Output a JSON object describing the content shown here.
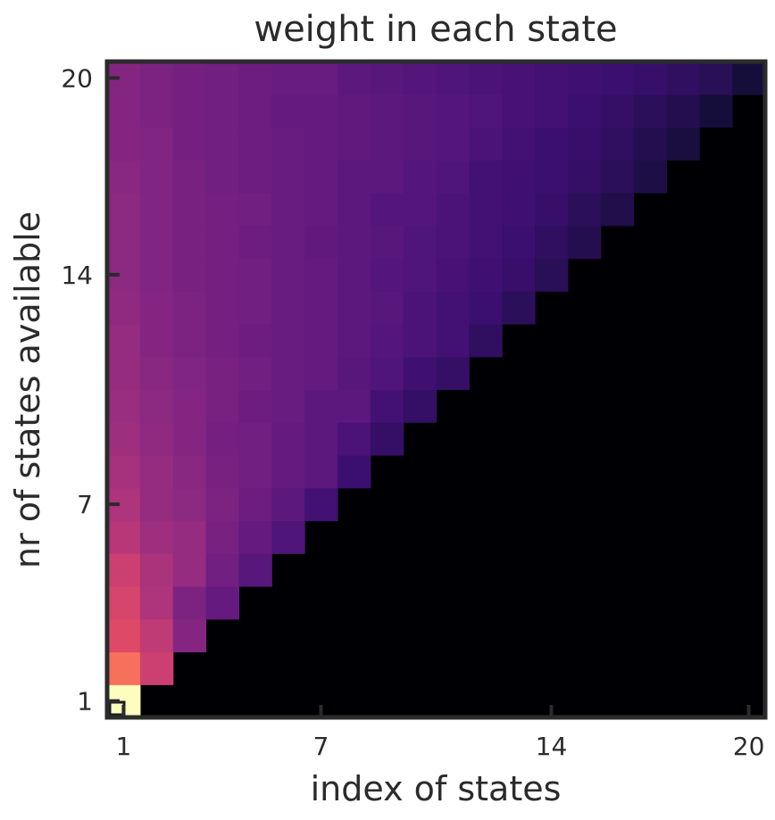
{
  "chart_data": {
    "type": "heatmap",
    "title": "weight in each state",
    "xlabel": "index of states",
    "ylabel": "nr of states available",
    "x_range": [
      1,
      20
    ],
    "y_range": [
      1,
      20
    ],
    "x_ticks": [
      1,
      7,
      14,
      20
    ],
    "y_ticks": [
      1,
      7,
      14,
      20
    ],
    "colormap": "magma",
    "grid": false,
    "cell_outside_triangle": "black (zero weight)",
    "rows": [
      {
        "n": 1,
        "values": [
          1.0
        ]
      },
      {
        "n": 2,
        "values": [
          0.7,
          0.55
        ]
      },
      {
        "n": 3,
        "values": [
          0.6,
          0.52,
          0.38
        ]
      },
      {
        "n": 4,
        "values": [
          0.58,
          0.48,
          0.36,
          0.3
        ]
      },
      {
        "n": 5,
        "values": [
          0.55,
          0.47,
          0.42,
          0.33,
          0.27
        ]
      },
      {
        "n": 6,
        "values": [
          0.5,
          0.44,
          0.42,
          0.35,
          0.3,
          0.25
        ]
      },
      {
        "n": 7,
        "values": [
          0.48,
          0.42,
          0.4,
          0.36,
          0.32,
          0.28,
          0.22
        ]
      },
      {
        "n": 8,
        "values": [
          0.46,
          0.42,
          0.39,
          0.35,
          0.33,
          0.3,
          0.28,
          0.2
        ]
      },
      {
        "n": 9,
        "values": [
          0.44,
          0.41,
          0.38,
          0.34,
          0.33,
          0.3,
          0.28,
          0.24,
          0.18
        ]
      },
      {
        "n": 10,
        "values": [
          0.43,
          0.4,
          0.38,
          0.35,
          0.32,
          0.31,
          0.28,
          0.28,
          0.22,
          0.18
        ]
      },
      {
        "n": 11,
        "values": [
          0.42,
          0.39,
          0.37,
          0.35,
          0.33,
          0.31,
          0.3,
          0.27,
          0.25,
          0.21,
          0.18
        ]
      },
      {
        "n": 12,
        "values": [
          0.42,
          0.38,
          0.36,
          0.34,
          0.32,
          0.31,
          0.3,
          0.28,
          0.26,
          0.24,
          0.22,
          0.17
        ]
      },
      {
        "n": 13,
        "values": [
          0.41,
          0.38,
          0.36,
          0.34,
          0.33,
          0.31,
          0.3,
          0.28,
          0.27,
          0.24,
          0.22,
          0.2,
          0.16
        ]
      },
      {
        "n": 14,
        "values": [
          0.4,
          0.37,
          0.35,
          0.34,
          0.33,
          0.31,
          0.3,
          0.28,
          0.26,
          0.25,
          0.23,
          0.21,
          0.19,
          0.15
        ]
      },
      {
        "n": 15,
        "values": [
          0.4,
          0.37,
          0.35,
          0.34,
          0.32,
          0.31,
          0.29,
          0.28,
          0.27,
          0.25,
          0.24,
          0.22,
          0.2,
          0.17,
          0.14
        ]
      },
      {
        "n": 16,
        "values": [
          0.4,
          0.37,
          0.35,
          0.34,
          0.33,
          0.31,
          0.3,
          0.28,
          0.26,
          0.26,
          0.24,
          0.22,
          0.21,
          0.19,
          0.16,
          0.13
        ]
      },
      {
        "n": 17,
        "values": [
          0.39,
          0.37,
          0.35,
          0.33,
          0.32,
          0.31,
          0.3,
          0.28,
          0.28,
          0.26,
          0.25,
          0.22,
          0.21,
          0.2,
          0.18,
          0.16,
          0.12
        ]
      },
      {
        "n": 18,
        "values": [
          0.38,
          0.37,
          0.34,
          0.33,
          0.32,
          0.31,
          0.3,
          0.29,
          0.28,
          0.27,
          0.26,
          0.24,
          0.22,
          0.2,
          0.19,
          0.17,
          0.14,
          0.11
        ]
      },
      {
        "n": 19,
        "values": [
          0.38,
          0.36,
          0.34,
          0.33,
          0.32,
          0.3,
          0.3,
          0.29,
          0.28,
          0.27,
          0.26,
          0.25,
          0.23,
          0.22,
          0.2,
          0.18,
          0.16,
          0.14,
          0.1
        ]
      },
      {
        "n": 20,
        "values": [
          0.38,
          0.36,
          0.34,
          0.33,
          0.32,
          0.31,
          0.31,
          0.28,
          0.27,
          0.26,
          0.25,
          0.24,
          0.23,
          0.22,
          0.21,
          0.2,
          0.19,
          0.17,
          0.15,
          0.1
        ]
      }
    ]
  },
  "colors": {
    "frame": "#2b2b2b",
    "zero": "#000004",
    "highlight_border": "#1a1a1a"
  }
}
